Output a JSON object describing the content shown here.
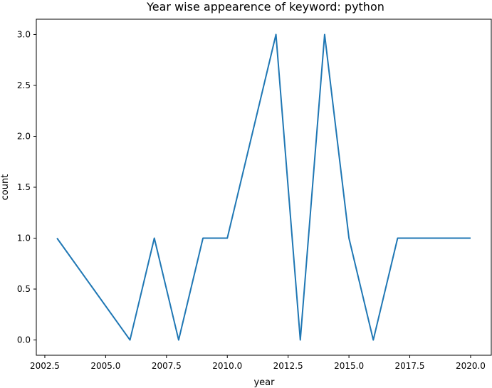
{
  "chart_data": {
    "type": "line",
    "title": "Year wise appearence of keyword: python",
    "xlabel": "year",
    "ylabel": "count",
    "x": [
      2003,
      2006,
      2007,
      2008,
      2009,
      2010,
      2012,
      2013,
      2014,
      2015,
      2016,
      2017,
      2018,
      2019,
      2020
    ],
    "series": [
      {
        "values": [
          1,
          0,
          1,
          0,
          1,
          1,
          3,
          0,
          3,
          1,
          0,
          1,
          1,
          1,
          1
        ]
      }
    ],
    "xlim": [
      2002.15,
      2020.85
    ],
    "ylim": [
      -0.15,
      3.15
    ],
    "xticks": [
      "2002.5",
      "2005.0",
      "2007.5",
      "2010.0",
      "2012.5",
      "2015.0",
      "2017.5",
      "2020.0"
    ],
    "yticks": [
      "0.0",
      "0.5",
      "1.0",
      "1.5",
      "2.0",
      "2.5",
      "3.0"
    ],
    "line_color": "#1f77b4",
    "grid": false,
    "legend": false
  }
}
